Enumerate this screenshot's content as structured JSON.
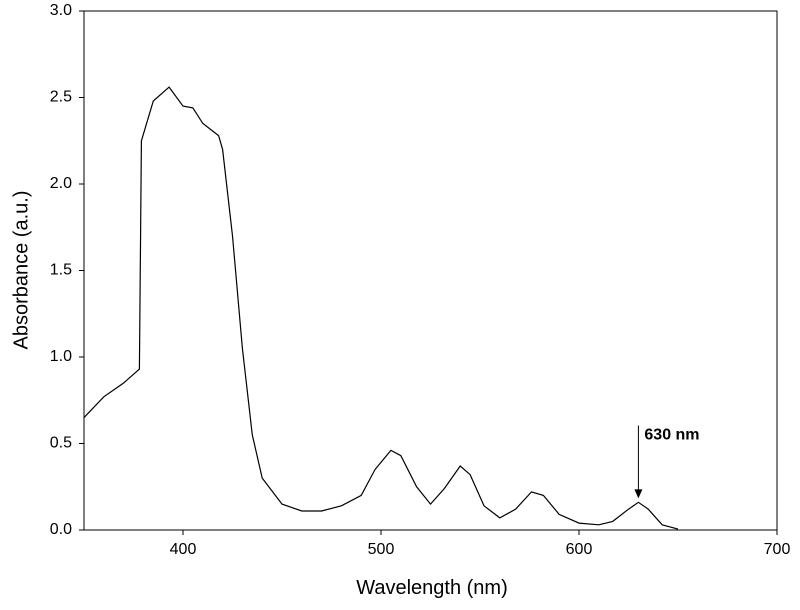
{
  "chart_data": {
    "type": "line",
    "x_label": "Wavelength (nm)",
    "y_label": "Absorbance (a.u.)",
    "x": [
      350,
      360,
      370,
      378,
      379,
      385,
      393,
      400,
      405,
      410,
      418,
      420,
      425,
      430,
      435,
      440,
      450,
      460,
      470,
      480,
      490,
      497,
      505,
      510,
      518,
      525,
      532,
      540,
      545,
      552,
      560,
      568,
      576,
      582,
      590,
      600,
      610,
      617,
      625,
      630,
      635,
      642,
      650
    ],
    "series": [
      {
        "color": "#000000",
        "values": [
          0.65,
          0.77,
          0.85,
          0.93,
          2.25,
          2.48,
          2.56,
          2.45,
          2.44,
          2.35,
          2.28,
          2.2,
          1.7,
          1.05,
          0.55,
          0.3,
          0.15,
          0.11,
          0.11,
          0.14,
          0.2,
          0.35,
          0.46,
          0.43,
          0.25,
          0.15,
          0.24,
          0.37,
          0.32,
          0.14,
          0.07,
          0.12,
          0.22,
          0.2,
          0.09,
          0.04,
          0.03,
          0.05,
          0.12,
          0.16,
          0.12,
          0.03,
          0.005
        ]
      }
    ],
    "xlim": [
      350,
      700
    ],
    "xticks": [
      400,
      500,
      600,
      700
    ],
    "ylim": [
      0,
      3
    ],
    "yticks": [
      {
        "value": 0,
        "label": "0.0"
      },
      {
        "value": 0.5,
        "label": "0.5"
      },
      {
        "value": 1,
        "label": "1.0"
      },
      {
        "value": 1.5,
        "label": "1.5"
      },
      {
        "value": 2,
        "label": "2.0"
      },
      {
        "value": 2.5,
        "label": "2.5"
      },
      {
        "value": 3,
        "label": "3.0"
      }
    ],
    "annotation": {
      "text": "630 nm",
      "x": 630
    }
  }
}
